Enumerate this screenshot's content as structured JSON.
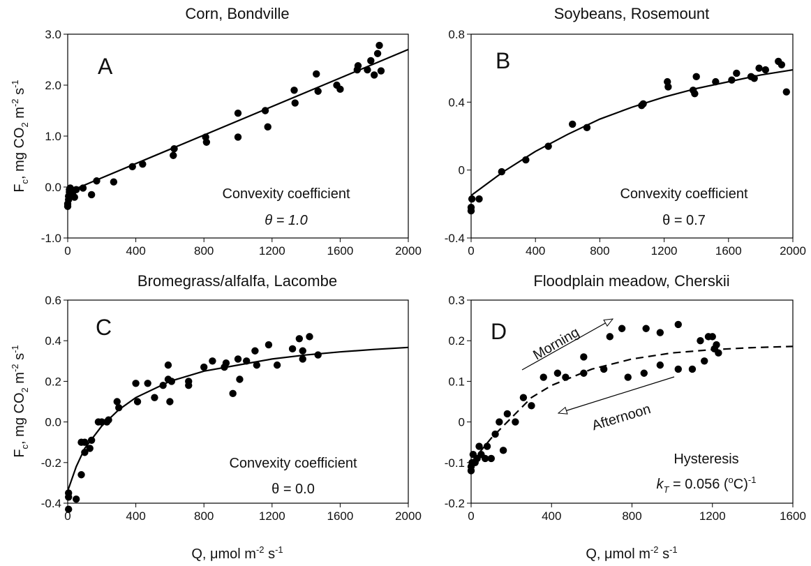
{
  "chart_data": [
    {
      "type": "scatter",
      "title": "Corn, Bondville",
      "letter": "A",
      "annotations": [
        "Convexity coefficient",
        "θ = 1.0"
      ],
      "ylabel": [
        "F",
        "c",
        ", mg CO",
        "2",
        " m",
        "-2",
        " s",
        "-1"
      ],
      "xlim": [
        0,
        2000
      ],
      "ylim": [
        -1,
        3
      ],
      "xticks": [
        0,
        400,
        800,
        1200,
        1600,
        2000
      ],
      "yticks": [
        {
          "value": -1,
          "label": "-1.0"
        },
        {
          "value": 0,
          "label": "0.0"
        },
        {
          "value": 1,
          "label": "1.0"
        },
        {
          "value": 2,
          "label": "2.0"
        },
        {
          "value": 3,
          "label": "3.0"
        }
      ],
      "series": [
        {
          "type": "scatter",
          "color": "#000000",
          "x": [
            0,
            0,
            5,
            5,
            10,
            10,
            15,
            20,
            30,
            40,
            50,
            90,
            170,
            140,
            270,
            380,
            440,
            620,
            625,
            810,
            815,
            1000,
            1000,
            1160,
            1175,
            1330,
            1335,
            1460,
            1470,
            1580,
            1600,
            1700,
            1705,
            1760,
            1780,
            1800,
            1820,
            1830,
            1840
          ],
          "y": [
            -0.38,
            -0.33,
            -0.25,
            -0.18,
            -0.1,
            -0.05,
            -0.02,
            -0.15,
            -0.1,
            -0.2,
            -0.05,
            -0.02,
            0.12,
            -0.15,
            0.1,
            0.4,
            0.45,
            0.62,
            0.75,
            0.98,
            0.88,
            1.45,
            0.98,
            1.5,
            1.18,
            1.9,
            1.65,
            2.22,
            1.88,
            2.0,
            1.92,
            2.3,
            2.38,
            2.3,
            2.48,
            2.2,
            2.62,
            2.78,
            2.28
          ]
        },
        {
          "type": "line",
          "color": "#000000",
          "dashed": false,
          "x": [
            0,
            500,
            1000,
            1500,
            2000
          ],
          "y": [
            -0.1,
            0.6,
            1.3,
            2.0,
            2.7
          ]
        }
      ]
    },
    {
      "type": "scatter",
      "title": "Soybeans, Rosemount",
      "letter": "B",
      "annotations": [
        "Convexity coefficient",
        "θ = 0.7"
      ],
      "xlim": [
        0,
        2000
      ],
      "ylim": [
        -0.4,
        0.8
      ],
      "xticks": [
        0,
        400,
        800,
        1200,
        1600,
        2000
      ],
      "yticks": [
        -0.4,
        0,
        0.4,
        0.8
      ],
      "series": [
        {
          "type": "scatter",
          "color": "#000000",
          "x": [
            0,
            0,
            5,
            50,
            190,
            340,
            480,
            630,
            720,
            1060,
            1070,
            1220,
            1225,
            1380,
            1390,
            1400,
            1520,
            1620,
            1650,
            1740,
            1760,
            1790,
            1830,
            1910,
            1930,
            1960
          ],
          "y": [
            -0.24,
            -0.22,
            -0.17,
            -0.17,
            -0.01,
            0.06,
            0.14,
            0.27,
            0.25,
            0.38,
            0.39,
            0.52,
            0.49,
            0.47,
            0.45,
            0.55,
            0.52,
            0.53,
            0.57,
            0.55,
            0.54,
            0.6,
            0.59,
            0.64,
            0.62,
            0.46
          ]
        },
        {
          "type": "line",
          "color": "#000000",
          "dashed": false,
          "x": [
            0,
            200,
            400,
            600,
            800,
            1000,
            1200,
            1400,
            1600,
            1800,
            2000
          ],
          "y": [
            -0.15,
            -0.01,
            0.11,
            0.21,
            0.3,
            0.37,
            0.43,
            0.48,
            0.52,
            0.56,
            0.59
          ]
        }
      ]
    },
    {
      "type": "scatter",
      "title": "Bromegrass/alfalfa, Lacombe",
      "letter": "C",
      "annotations": [
        "Convexity coefficient",
        "θ = 0.0"
      ],
      "ylabel": [
        "F",
        "c",
        ", mg CO",
        "2",
        " m",
        "-2",
        " s",
        "-1"
      ],
      "xlabel": [
        "Q, μmol m",
        "-2",
        " s",
        "-1"
      ],
      "xlim": [
        0,
        2000
      ],
      "ylim": [
        -0.4,
        0.6
      ],
      "xticks": [
        0,
        400,
        800,
        1200,
        1600,
        2000
      ],
      "yticks": [
        -0.4,
        -0.2,
        {
          "value": 0,
          "label": "0.0"
        },
        0.2,
        0.4,
        0.6
      ],
      "series": [
        {
          "type": "scatter",
          "color": "#000000",
          "x": [
            5,
            5,
            5,
            50,
            80,
            80,
            100,
            100,
            130,
            140,
            180,
            200,
            230,
            240,
            290,
            300,
            400,
            410,
            470,
            510,
            560,
            590,
            590,
            600,
            610,
            710,
            710,
            800,
            850,
            920,
            930,
            970,
            1000,
            1010,
            1050,
            1100,
            1110,
            1180,
            1230,
            1320,
            1360,
            1380,
            1380,
            1420,
            1470
          ],
          "y": [
            -0.43,
            -0.37,
            -0.35,
            -0.38,
            -0.26,
            -0.1,
            -0.1,
            -0.15,
            -0.13,
            -0.09,
            0.0,
            0.0,
            0.0,
            0.01,
            0.1,
            0.07,
            0.19,
            0.1,
            0.19,
            0.12,
            0.18,
            0.28,
            0.21,
            0.1,
            0.2,
            0.2,
            0.18,
            0.27,
            0.3,
            0.27,
            0.29,
            0.14,
            0.31,
            0.21,
            0.3,
            0.35,
            0.28,
            0.38,
            0.28,
            0.36,
            0.41,
            0.31,
            0.35,
            0.42,
            0.33
          ]
        },
        {
          "type": "line",
          "color": "#000000",
          "dashed": false,
          "x": [
            0,
            50,
            100,
            200,
            300,
            400,
            600,
            800,
            1000,
            1200,
            1400,
            1600,
            1800,
            2000
          ],
          "y": [
            -0.34,
            -0.22,
            -0.13,
            -0.02,
            0.06,
            0.12,
            0.2,
            0.25,
            0.28,
            0.31,
            0.33,
            0.345,
            0.357,
            0.367
          ]
        }
      ]
    },
    {
      "type": "scatter",
      "title": "Floodplain meadow, Cherskii",
      "letter": "D",
      "annotations": [
        "Morning",
        "Afternoon",
        "Hysteresis"
      ],
      "kt_label": [
        "k",
        "T",
        " = 0.056 (",
        "o",
        "C)",
        "-1"
      ],
      "xlabel": [
        "Q, μmol m",
        "-2",
        " s",
        "-1"
      ],
      "xlim": [
        0,
        1600
      ],
      "ylim": [
        -0.2,
        0.3
      ],
      "xticks": [
        0,
        400,
        800,
        1200,
        1600
      ],
      "yticks": [
        -0.2,
        -0.1,
        0,
        0.1,
        0.2,
        0.3
      ],
      "series": [
        {
          "type": "scatter",
          "color": "#000000",
          "x": [
            0,
            0,
            5,
            10,
            20,
            30,
            40,
            50,
            70,
            80,
            100,
            120,
            140,
            160,
            180,
            220,
            260,
            300,
            360,
            430,
            470,
            560,
            560,
            660,
            690,
            750,
            780,
            860,
            870,
            940,
            940,
            1030,
            1030,
            1100,
            1140,
            1160,
            1180,
            1200,
            1210,
            1220,
            1230
          ],
          "y": [
            -0.12,
            -0.11,
            -0.1,
            -0.08,
            -0.1,
            -0.09,
            -0.06,
            -0.08,
            -0.09,
            -0.06,
            -0.09,
            -0.03,
            0.0,
            -0.07,
            0.02,
            0.0,
            0.06,
            0.04,
            0.11,
            0.12,
            0.11,
            0.16,
            0.12,
            0.13,
            0.21,
            0.23,
            0.11,
            0.12,
            0.23,
            0.22,
            0.14,
            0.24,
            0.13,
            0.13,
            0.2,
            0.15,
            0.21,
            0.21,
            0.18,
            0.19,
            0.17
          ]
        },
        {
          "type": "line",
          "color": "#000000",
          "dashed": true,
          "x": [
            0,
            100,
            200,
            300,
            400,
            500,
            600,
            800,
            1000,
            1200,
            1400,
            1600
          ],
          "y": [
            -0.1,
            -0.04,
            0.01,
            0.06,
            0.09,
            0.11,
            0.13,
            0.155,
            0.17,
            0.178,
            0.183,
            0.186
          ]
        }
      ]
    }
  ]
}
